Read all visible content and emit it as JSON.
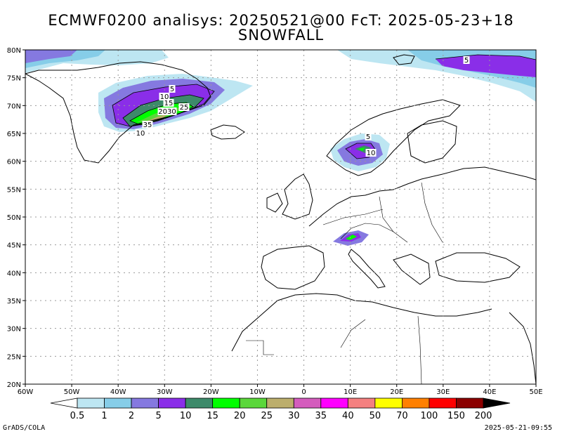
{
  "title": {
    "line1": "ECMWF0200 analisys: 20250521@00 FcT: 2025-05-23+18",
    "line2": "SNOWFALL"
  },
  "map": {
    "lon_labels": [
      "60W",
      "50W",
      "40W",
      "30W",
      "20W",
      "10W",
      "0",
      "10E",
      "20E",
      "30E",
      "40E",
      "50E"
    ],
    "lat_labels": [
      "80N",
      "75N",
      "70N",
      "65N",
      "60N",
      "55N",
      "50N",
      "45N",
      "40N",
      "35N",
      "30N",
      "25N",
      "20N"
    ],
    "contour_labels": [
      {
        "text": "5",
        "region": "greenland"
      },
      {
        "text": "10",
        "region": "greenland"
      },
      {
        "text": "15",
        "region": "greenland"
      },
      {
        "text": "25",
        "region": "greenland"
      },
      {
        "text": "2030",
        "region": "greenland"
      },
      {
        "text": "35",
        "region": "greenland"
      },
      {
        "text": "10",
        "region": "greenland"
      },
      {
        "text": "5",
        "region": "arctic"
      },
      {
        "text": "5",
        "region": "scandinavia"
      },
      {
        "text": "10",
        "region": "scandinavia"
      }
    ]
  },
  "legend": {
    "levels": [
      "0.5",
      "1",
      "2",
      "5",
      "10",
      "15",
      "20",
      "25",
      "30",
      "35",
      "40",
      "50",
      "70",
      "100",
      "150",
      "200"
    ],
    "colors": [
      "#ffffff",
      "#bde6f2",
      "#86cde8",
      "#8579e0",
      "#8a2ee8",
      "#3d8a6a",
      "#00ff00",
      "#5ad73a",
      "#bcae6c",
      "#d45cbd",
      "#ff00ff",
      "#f48080",
      "#ffff00",
      "#ff8000",
      "#ff0000",
      "#8b0000",
      "#000000"
    ]
  },
  "footer": {
    "left": "GrADS/COLA",
    "right": "2025-05-21-09:55"
  }
}
